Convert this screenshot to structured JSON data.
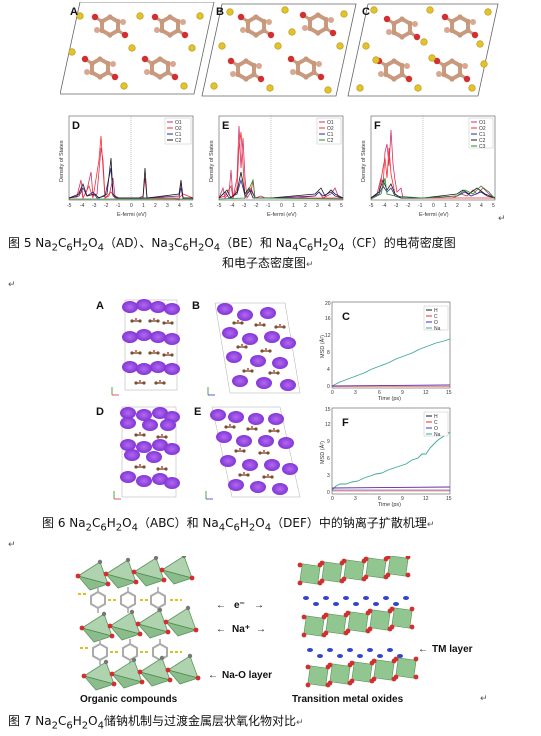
{
  "figure5": {
    "panel_labels": [
      "A",
      "B",
      "C",
      "D",
      "E",
      "F"
    ],
    "dos_xlabel": "E-fermi (eV)",
    "dos_ylabel": "Density of States",
    "xticks": [
      "-5",
      "-4",
      "-3",
      "-2",
      "-1",
      "0",
      "1",
      "2",
      "3",
      "4",
      "5"
    ],
    "legend_D": [
      "O1",
      "O2",
      "C1",
      "C2"
    ],
    "legend_E": [
      "O1",
      "O2",
      "C1",
      "C2"
    ],
    "legend_F": [
      "O1",
      "O2",
      "C1",
      "C2",
      "C3"
    ],
    "caption_line1_parts": [
      "图 5 Na",
      "2",
      "C",
      "6",
      "H",
      "2",
      "O",
      "4",
      "（AD）、Na",
      "3",
      "C",
      "6",
      "H",
      "2",
      "O",
      "4",
      "（BE）和 Na",
      "4",
      "C",
      "6",
      "H",
      "2",
      "O",
      "4",
      "（CF）的电荷密度图"
    ],
    "caption_line2": "和电子态密度图",
    "colors": {
      "O1": "#d0306a",
      "O2": "#ff2a2a",
      "C1": "#2a2a9a",
      "C2": "#1a1a1a",
      "C3": "#2a8a2a"
    }
  },
  "figure6": {
    "panel_labels": [
      "A",
      "B",
      "C",
      "D",
      "E",
      "F"
    ],
    "msd_xlabel": "Time (ps)",
    "msd_ylabel": "MSD (Å²)",
    "legend": [
      "H",
      "C",
      "O",
      "Na"
    ],
    "msd_C_yticks": [
      "0",
      "4",
      "8",
      "12",
      "16",
      "20"
    ],
    "msd_F_yticks": [
      "0",
      "3",
      "6",
      "9",
      "12",
      "15"
    ],
    "xticks": [
      "0",
      "3",
      "6",
      "9",
      "12",
      "15"
    ],
    "caption_parts": [
      "图 6 Na",
      "2",
      "C",
      "6",
      "H",
      "2",
      "O",
      "4",
      "（ABC）和 Na",
      "4",
      "C",
      "6",
      "H",
      "2",
      "O",
      "4",
      "（DEF）中的钠离子扩散机理"
    ]
  },
  "figure7": {
    "electron_label": "e⁻",
    "sodium_label": "Na⁺",
    "tm_layer_label": "TM layer",
    "nao_layer_label": "Na-O layer",
    "left_caption": "Organic compounds",
    "right_caption": "Transition metal oxides",
    "caption_parts": [
      "图 7 Na",
      "2",
      "C",
      "6",
      "H",
      "2",
      "O",
      "4",
      "储钠机制与过渡金属层状氧化物对比"
    ]
  },
  "para_mark": "↵"
}
